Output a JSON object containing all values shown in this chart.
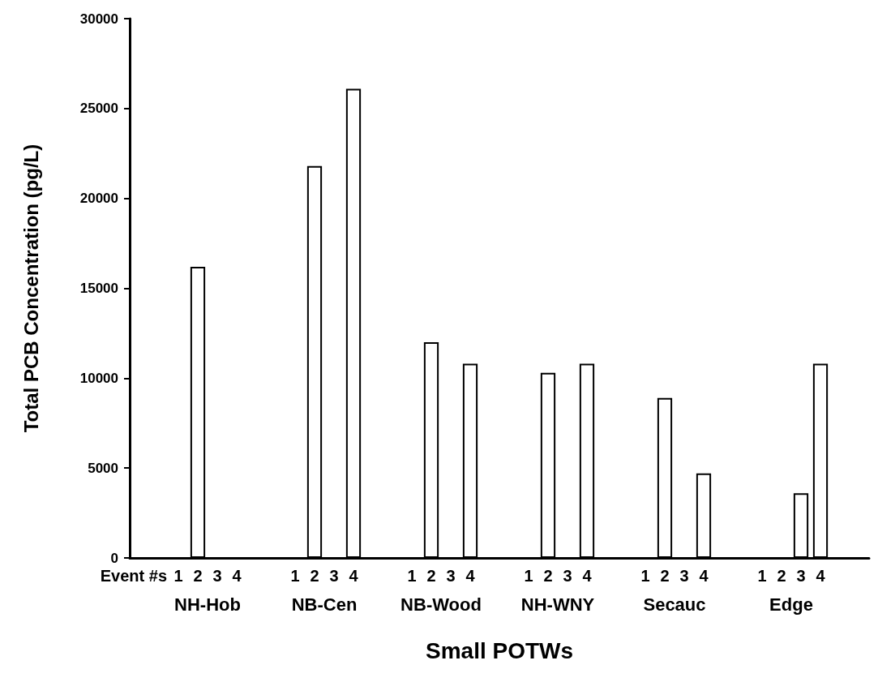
{
  "chart_data": {
    "type": "bar",
    "xlabel": "Small POTWs",
    "ylabel": "Total PCB Concentration (pg/L)",
    "categories": [
      null,
      null,
      "1",
      "2",
      "3",
      "4",
      null,
      null,
      "1",
      "2",
      "3",
      "4",
      null,
      null,
      "1",
      "2",
      "3",
      "4",
      null,
      null,
      "1",
      "2",
      "3",
      "4",
      null,
      null,
      "1",
      "2",
      "3",
      "4",
      null,
      null,
      "1",
      "2",
      "3",
      "4",
      null,
      null
    ],
    "values": [
      null,
      null,
      null,
      16200,
      null,
      null,
      null,
      null,
      null,
      21800,
      null,
      26100,
      null,
      null,
      null,
      12000,
      null,
      10800,
      null,
      null,
      null,
      10300,
      null,
      10800,
      null,
      null,
      null,
      8900,
      null,
      4700,
      null,
      null,
      null,
      null,
      3600,
      10800,
      null,
      null
    ],
    "color": "#ffffff",
    "ylim": [
      0,
      30000
    ],
    "yticks": [
      0,
      5000,
      10000,
      15000,
      20000,
      25000,
      30000
    ],
    "grid": false,
    "annotations": [
      "Event #s",
      "NH-Hob",
      "NB-Cen",
      "NB-Wood",
      "NH-WNY",
      "Secauc",
      "Edge"
    ]
  }
}
